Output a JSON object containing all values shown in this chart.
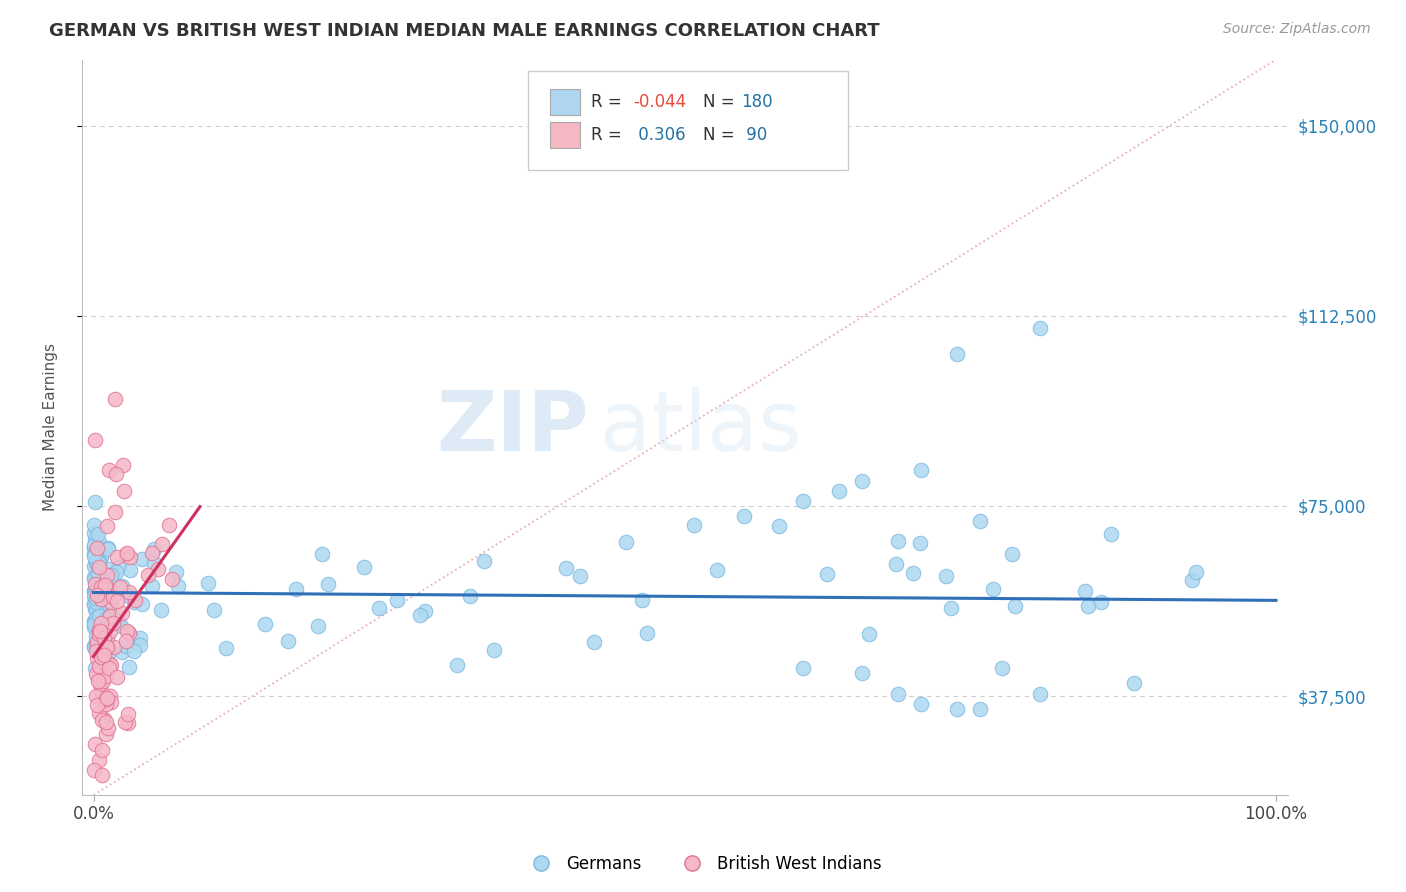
{
  "title": "GERMAN VS BRITISH WEST INDIAN MEDIAN MALE EARNINGS CORRELATION CHART",
  "source": "Source: ZipAtlas.com",
  "ylabel": "Median Male Earnings",
  "ytick_labels": [
    "$37,500",
    "$75,000",
    "$112,500",
    "$150,000"
  ],
  "ytick_values": [
    37500,
    75000,
    112500,
    150000
  ],
  "xtick_labels": [
    "0.0%",
    "100.0%"
  ],
  "xtick_values": [
    0.0,
    1.0
  ],
  "xlim": [
    -0.01,
    1.01
  ],
  "ylim": [
    18000,
    163000
  ],
  "background_color": "#ffffff",
  "grid_color": "#cccccc",
  "watermark_zip": "ZIP",
  "watermark_atlas": "atlas",
  "series": [
    {
      "name": "Germans",
      "fill_color": "#add8f0",
      "edge_color": "#7ab8e0",
      "R": -0.044,
      "N": 180,
      "trend_color": "#3070b8",
      "trend_linewidth": 2.2
    },
    {
      "name": "British West Indians",
      "fill_color": "#f5b8c8",
      "edge_color": "#e07090",
      "R": 0.306,
      "N": 90,
      "trend_color": "#d03060",
      "trend_linewidth": 2.2
    }
  ],
  "legend_fill_blue": "#aed6f1",
  "legend_fill_pink": "#f5b7c1",
  "legend_edge": "#cccccc",
  "legend_text_color": "#2471a3",
  "legend_R_neg_color": "#e74c3c",
  "diagonal_color": "#e8b0b8",
  "diagonal_style": "dotted"
}
